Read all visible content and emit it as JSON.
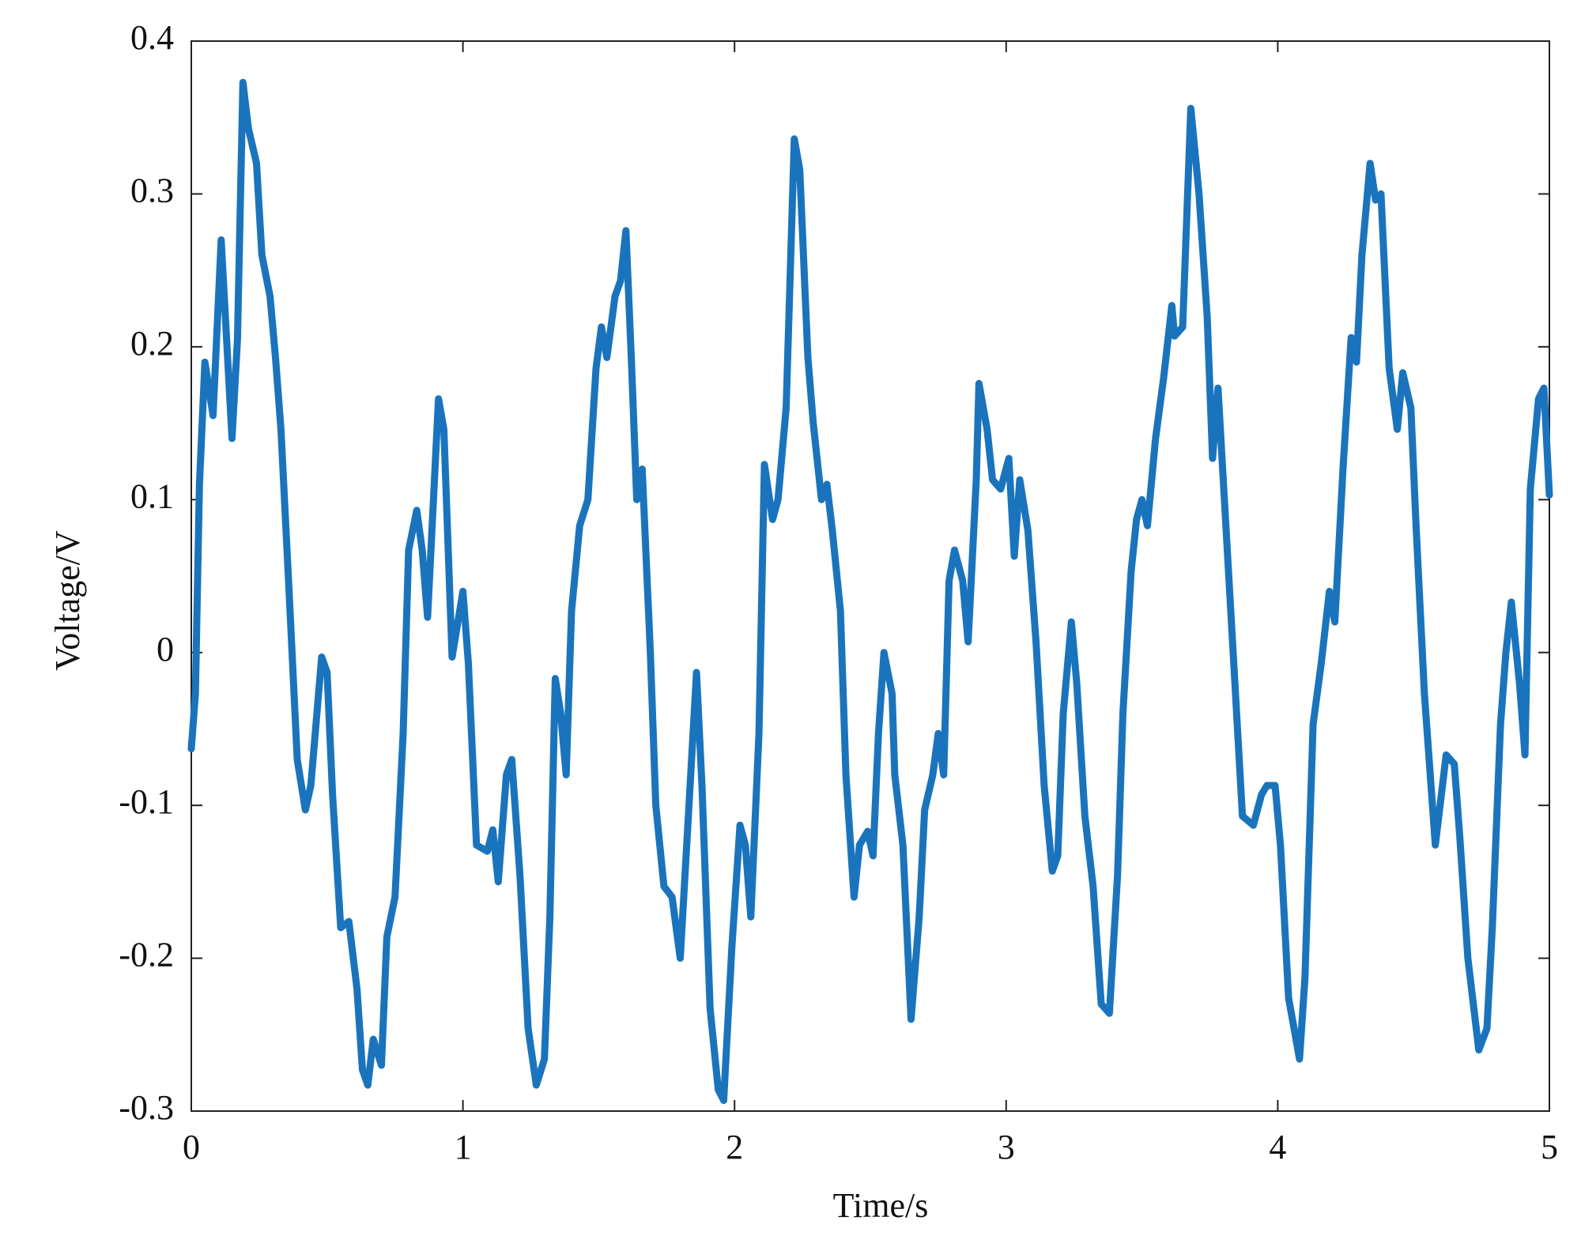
{
  "chart_data": {
    "type": "line",
    "x_label": "Time/s",
    "y_label": "Voltage/V",
    "xlim": [
      0,
      5
    ],
    "ylim": [
      -0.3,
      0.4
    ],
    "xticks": [
      0,
      1,
      2,
      3,
      4,
      5
    ],
    "yticks": [
      -0.3,
      -0.2,
      -0.1,
      0,
      0.1,
      0.2,
      0.3,
      0.4
    ],
    "grid": false,
    "color": "#1a74bd",
    "x": [
      0,
      0.015,
      0.03,
      0.05,
      0.08,
      0.11,
      0.15,
      0.17,
      0.19,
      0.21,
      0.24,
      0.26,
      0.29,
      0.31,
      0.33,
      0.36,
      0.39,
      0.42,
      0.44,
      0.48,
      0.5,
      0.52,
      0.55,
      0.58,
      0.61,
      0.63,
      0.65,
      0.67,
      0.7,
      0.72,
      0.75,
      0.78,
      0.8,
      0.83,
      0.85,
      0.87,
      0.91,
      0.93,
      0.96,
      1.0,
      1.02,
      1.05,
      1.09,
      1.11,
      1.13,
      1.16,
      1.18,
      1.21,
      1.24,
      1.27,
      1.3,
      1.32,
      1.34,
      1.36,
      1.38,
      1.4,
      1.43,
      1.46,
      1.49,
      1.51,
      1.53,
      1.56,
      1.58,
      1.6,
      1.62,
      1.64,
      1.66,
      1.69,
      1.71,
      1.74,
      1.77,
      1.8,
      1.83,
      1.86,
      1.88,
      1.91,
      1.94,
      1.96,
      1.99,
      2.02,
      2.04,
      2.06,
      2.09,
      2.11,
      2.14,
      2.16,
      2.19,
      2.22,
      2.24,
      2.27,
      2.29,
      2.32,
      2.34,
      2.36,
      2.39,
      2.41,
      2.44,
      2.46,
      2.49,
      2.51,
      2.53,
      2.55,
      2.58,
      2.59,
      2.62,
      2.65,
      2.68,
      2.7,
      2.73,
      2.75,
      2.77,
      2.79,
      2.81,
      2.84,
      2.86,
      2.89,
      2.9,
      2.93,
      2.95,
      2.98,
      3.01,
      3.03,
      3.05,
      3.08,
      3.11,
      3.14,
      3.17,
      3.19,
      3.21,
      3.24,
      3.26,
      3.29,
      3.32,
      3.35,
      3.38,
      3.41,
      3.43,
      3.46,
      3.48,
      3.5,
      3.52,
      3.55,
      3.58,
      3.61,
      3.62,
      3.65,
      3.68,
      3.71,
      3.74,
      3.76,
      3.78,
      3.81,
      3.84,
      3.87,
      3.91,
      3.94,
      3.96,
      3.99,
      4.01,
      4.04,
      4.08,
      4.1,
      4.13,
      4.16,
      4.19,
      4.21,
      4.24,
      4.27,
      4.29,
      4.31,
      4.34,
      4.36,
      4.38,
      4.41,
      4.44,
      4.46,
      4.49,
      4.51,
      4.54,
      4.58,
      4.62,
      4.65,
      4.67,
      4.7,
      4.74,
      4.77,
      4.79,
      4.82,
      4.84,
      4.86,
      4.89,
      4.91,
      4.93,
      4.96,
      4.98,
      5.0
    ],
    "values": [
      -0.063,
      -0.027,
      0.11,
      0.19,
      0.155,
      0.27,
      0.14,
      0.205,
      0.373,
      0.343,
      0.32,
      0.26,
      0.233,
      0.193,
      0.146,
      0.04,
      -0.07,
      -0.103,
      -0.087,
      -0.003,
      -0.013,
      -0.093,
      -0.18,
      -0.176,
      -0.22,
      -0.273,
      -0.283,
      -0.253,
      -0.27,
      -0.186,
      -0.16,
      -0.053,
      0.067,
      0.093,
      0.067,
      0.023,
      0.166,
      0.146,
      -0.003,
      0.04,
      -0.007,
      -0.126,
      -0.13,
      -0.116,
      -0.15,
      -0.08,
      -0.07,
      -0.146,
      -0.246,
      -0.283,
      -0.266,
      -0.173,
      -0.017,
      -0.04,
      -0.08,
      0.027,
      0.083,
      0.1,
      0.186,
      0.213,
      0.193,
      0.233,
      0.243,
      0.276,
      0.193,
      0.1,
      0.12,
      0.0,
      -0.1,
      -0.153,
      -0.16,
      -0.2,
      -0.107,
      -0.013,
      -0.087,
      -0.233,
      -0.286,
      -0.293,
      -0.193,
      -0.113,
      -0.126,
      -0.173,
      -0.053,
      0.123,
      0.087,
      0.1,
      0.16,
      0.336,
      0.316,
      0.193,
      0.15,
      0.1,
      0.11,
      0.08,
      0.027,
      -0.08,
      -0.16,
      -0.126,
      -0.117,
      -0.133,
      -0.053,
      0.0,
      -0.027,
      -0.08,
      -0.126,
      -0.24,
      -0.173,
      -0.103,
      -0.08,
      -0.053,
      -0.08,
      0.047,
      0.067,
      0.047,
      0.007,
      0.113,
      0.176,
      0.146,
      0.113,
      0.107,
      0.127,
      0.063,
      0.113,
      0.08,
      0.007,
      -0.087,
      -0.143,
      -0.133,
      -0.04,
      0.02,
      -0.02,
      -0.107,
      -0.153,
      -0.23,
      -0.236,
      -0.146,
      -0.04,
      0.053,
      0.087,
      0.1,
      0.083,
      0.14,
      0.18,
      0.227,
      0.207,
      0.213,
      0.356,
      0.3,
      0.22,
      0.127,
      0.173,
      0.08,
      -0.013,
      -0.107,
      -0.113,
      -0.093,
      -0.087,
      -0.087,
      -0.126,
      -0.226,
      -0.266,
      -0.213,
      -0.047,
      -0.007,
      0.04,
      0.02,
      0.12,
      0.206,
      0.19,
      0.26,
      0.32,
      0.296,
      0.3,
      0.186,
      0.146,
      0.183,
      0.16,
      0.08,
      -0.027,
      -0.126,
      -0.067,
      -0.073,
      -0.12,
      -0.2,
      -0.26,
      -0.246,
      -0.18,
      -0.047,
      0.0,
      0.033,
      -0.02,
      -0.067,
      0.107,
      0.166,
      0.173,
      0.103
    ]
  }
}
